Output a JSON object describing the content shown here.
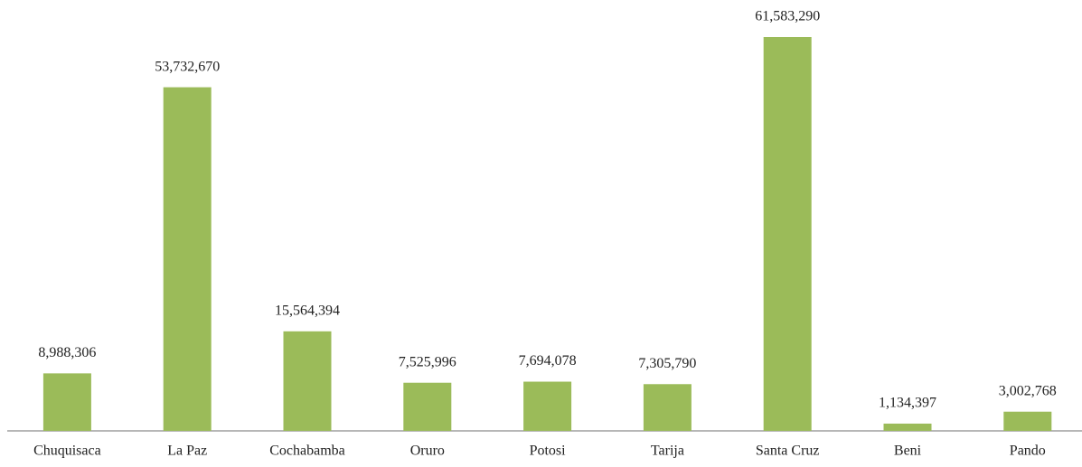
{
  "chart_data": {
    "type": "bar",
    "categories": [
      "Chuquisaca",
      "La Paz",
      "Cochabamba",
      "Oruro",
      "Potosi",
      "Tarija",
      "Santa Cruz",
      "Beni",
      "Pando"
    ],
    "values": [
      8988306,
      53732670,
      15564394,
      7525996,
      7694078,
      7305790,
      61583290,
      1134397,
      3002768
    ],
    "value_labels": [
      "8,988,306",
      "53,732,670",
      "15,564,394",
      "7,525,996",
      "7,694,078",
      "7,305,790",
      "61,583,290",
      "1,134,397",
      "3,002,768"
    ],
    "color": "#9bbb59"
  }
}
